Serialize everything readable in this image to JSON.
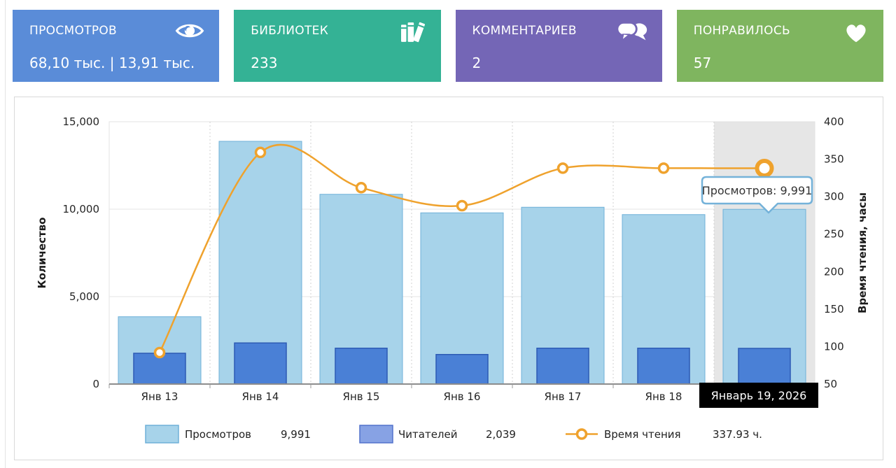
{
  "cards": [
    {
      "title": "ПРОСМОТРОВ",
      "value": "68,10 тыс. | 13,91 тыс.",
      "icon": "eye-icon",
      "color": "#5a8cd8"
    },
    {
      "title": "БИБЛИОТЕК",
      "value": "233",
      "icon": "books-icon",
      "color": "#34b295"
    },
    {
      "title": "КОММЕНТАРИЕВ",
      "value": "2",
      "icon": "comments-icon",
      "color": "#7466b6"
    },
    {
      "title": "ПОНРАВИЛОСЬ",
      "value": "57",
      "icon": "heart-icon",
      "color": "#7fb55f"
    }
  ],
  "chart_data": {
    "type": "bar",
    "subtype": "overlaid bars with spline line, dual y-axes",
    "categories": [
      "Янв 13",
      "Янв 14",
      "Янв 15",
      "Янв 16",
      "Янв 17",
      "Янв 18",
      "Январь 19, 2026"
    ],
    "series": [
      {
        "name": "Просмотров",
        "type": "bar",
        "axis": "left",
        "color": "#a7d3ea",
        "border_color": "#6fb0d8",
        "values": [
          3850,
          13880,
          10850,
          9790,
          10110,
          9690,
          9991
        ]
      },
      {
        "name": "Читателей",
        "type": "bar",
        "axis": "left",
        "color": "#4a80d6",
        "border_color": "#2d5bb4",
        "legend_color": "#87a2e4",
        "legend_border": "#5272cc",
        "values": [
          1760,
          2350,
          2050,
          1690,
          2050,
          2050,
          2039
        ]
      },
      {
        "name": "Время чтения",
        "type": "line",
        "axis": "right",
        "color": "#efa22d",
        "values": [
          92,
          359,
          312,
          288,
          338,
          338,
          337.93
        ]
      }
    ],
    "y_left": {
      "title": "Количество",
      "min": 0,
      "max": 15000,
      "ticks": [
        "15,000",
        "10,000",
        "5,000",
        "0"
      ],
      "tick_values": [
        15000,
        10000,
        5000,
        0
      ]
    },
    "y_right": {
      "title": "Время чтения, часы",
      "min": 50,
      "max": 400,
      "ticks": [
        "400",
        "350",
        "300",
        "250",
        "200",
        "150",
        "100",
        "50"
      ],
      "tick_values": [
        400,
        350,
        300,
        250,
        200,
        150,
        100,
        50
      ]
    },
    "grid": {
      "horizontal": "solid",
      "vertical": "dotted"
    },
    "selected": {
      "index": 6,
      "label": "Январь 19, 2026",
      "band_color": "#e6e6e6",
      "label_bg": "#000000",
      "label_fg": "#ffffff"
    },
    "tooltip": {
      "text": "Просмотров: 9,991",
      "border_color": "#74b2d9"
    },
    "legend": {
      "position": "bottom",
      "items": [
        {
          "label": "Просмотров",
          "value": "9,991"
        },
        {
          "label": "Читателей",
          "value": "2,039"
        },
        {
          "label": "Время чтения",
          "value": "337.93 ч."
        }
      ]
    }
  }
}
